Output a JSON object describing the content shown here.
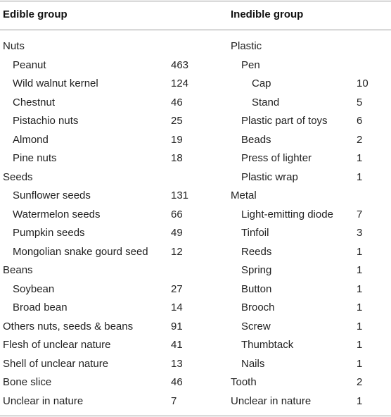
{
  "headers": {
    "edible": "Edible group",
    "inedible": "Inedible group"
  },
  "edible": [
    {
      "label": "Nuts",
      "value": "",
      "level": 0
    },
    {
      "label": "Peanut",
      "value": "463",
      "level": 1
    },
    {
      "label": "Wild walnut kernel",
      "value": "124",
      "level": 1
    },
    {
      "label": "Chestnut",
      "value": "46",
      "level": 1
    },
    {
      "label": "Pistachio nuts",
      "value": "25",
      "level": 1
    },
    {
      "label": "Almond",
      "value": "19",
      "level": 1
    },
    {
      "label": "Pine nuts",
      "value": "18",
      "level": 1
    },
    {
      "label": "Seeds",
      "value": "",
      "level": 0
    },
    {
      "label": "Sunflower seeds",
      "value": "131",
      "level": 1
    },
    {
      "label": "Watermelon seeds",
      "value": "66",
      "level": 1
    },
    {
      "label": "Pumpkin seeds",
      "value": "49",
      "level": 1
    },
    {
      "label": "Mongolian snake gourd seed",
      "value": "12",
      "level": 1
    },
    {
      "label": "Beans",
      "value": "",
      "level": 0
    },
    {
      "label": "Soybean",
      "value": "27",
      "level": 1
    },
    {
      "label": "Broad bean",
      "value": "14",
      "level": 1
    },
    {
      "label": "Others nuts, seeds & beans",
      "value": "91",
      "level": 0
    },
    {
      "label": "Flesh of unclear nature",
      "value": "41",
      "level": 0
    },
    {
      "label": "Shell of unclear nature",
      "value": "13",
      "level": 0
    },
    {
      "label": "Bone slice",
      "value": "46",
      "level": 0
    },
    {
      "label": "Unclear in nature",
      "value": "7",
      "level": 0
    }
  ],
  "inedible": [
    {
      "label": "Plastic",
      "value": "",
      "level": 0
    },
    {
      "label": "Pen",
      "value": "",
      "level": 1
    },
    {
      "label": "Cap",
      "value": "10",
      "level": 2
    },
    {
      "label": "Stand",
      "value": "5",
      "level": 2
    },
    {
      "label": "Plastic part of toys",
      "value": "6",
      "level": 1
    },
    {
      "label": "Beads",
      "value": "2",
      "level": 1
    },
    {
      "label": "Press of lighter",
      "value": "1",
      "level": 1
    },
    {
      "label": "Plastic wrap",
      "value": "1",
      "level": 1
    },
    {
      "label": "Metal",
      "value": "",
      "level": 0
    },
    {
      "label": "Light-emitting diode",
      "value": "7",
      "level": 1
    },
    {
      "label": "Tinfoil",
      "value": "3",
      "level": 1
    },
    {
      "label": "Reeds",
      "value": "1",
      "level": 1
    },
    {
      "label": "Spring",
      "value": "1",
      "level": 1
    },
    {
      "label": "Button",
      "value": "1",
      "level": 1
    },
    {
      "label": "Brooch",
      "value": "1",
      "level": 1
    },
    {
      "label": "Screw",
      "value": "1",
      "level": 1
    },
    {
      "label": "Thumbtack",
      "value": "1",
      "level": 1
    },
    {
      "label": "Nails",
      "value": "1",
      "level": 1
    },
    {
      "label": "Tooth",
      "value": "2",
      "level": 0
    },
    {
      "label": "Unclear in nature",
      "value": "1",
      "level": 0
    }
  ]
}
